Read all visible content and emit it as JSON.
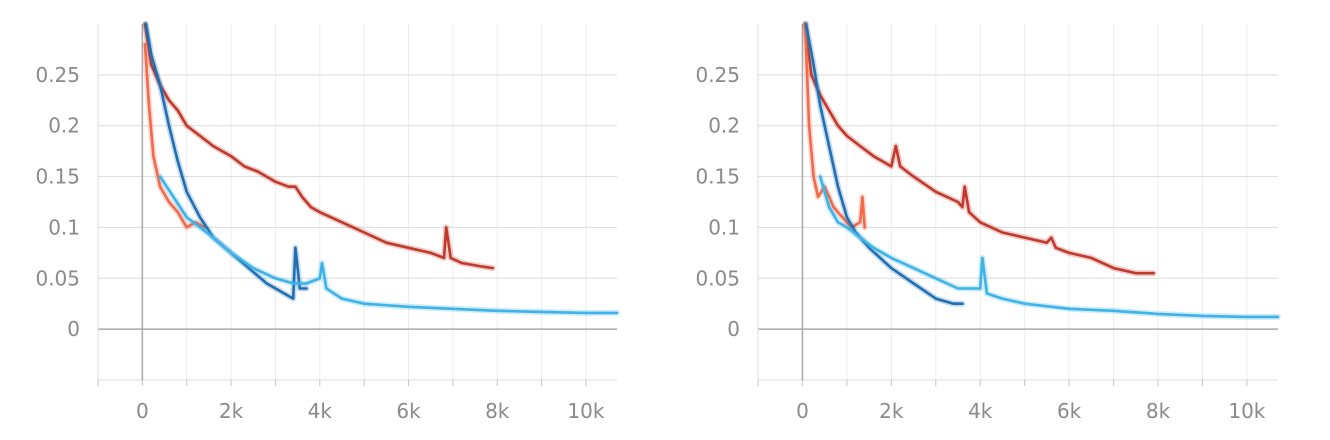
{
  "chart_data": [
    {
      "type": "line",
      "title": "",
      "xlabel": "",
      "ylabel": "",
      "xlim": [
        -1000,
        10700
      ],
      "ylim": [
        -0.05,
        0.3
      ],
      "x_ticks": [
        0,
        2000,
        4000,
        6000,
        8000,
        10000
      ],
      "x_tick_labels": [
        "0",
        "2k",
        "4k",
        "6k",
        "8k",
        "10k"
      ],
      "y_ticks": [
        0,
        0.05,
        0.1,
        0.15,
        0.2,
        0.25
      ],
      "y_tick_labels": [
        "0",
        "0.05",
        "0.1",
        "0.15",
        "0.2",
        "0.25"
      ],
      "grid": true,
      "legend": "none",
      "series": [
        {
          "color": "#c0392b",
          "points": [
            [
              60,
              0.3
            ],
            [
              200,
              0.26
            ],
            [
              400,
              0.24
            ],
            [
              600,
              0.225
            ],
            [
              800,
              0.215
            ],
            [
              1000,
              0.2
            ],
            [
              1300,
              0.19
            ],
            [
              1600,
              0.18
            ],
            [
              2000,
              0.17
            ],
            [
              2300,
              0.16
            ],
            [
              2600,
              0.155
            ],
            [
              3000,
              0.145
            ],
            [
              3300,
              0.14
            ],
            [
              3450,
              0.14
            ],
            [
              3600,
              0.13
            ],
            [
              3800,
              0.12
            ],
            [
              4000,
              0.115
            ],
            [
              4500,
              0.105
            ],
            [
              5000,
              0.095
            ],
            [
              5500,
              0.085
            ],
            [
              6000,
              0.08
            ],
            [
              6500,
              0.075
            ],
            [
              6800,
              0.07
            ],
            [
              6850,
              0.1
            ],
            [
              6950,
              0.07
            ],
            [
              7200,
              0.065
            ],
            [
              7600,
              0.062
            ],
            [
              7900,
              0.06
            ]
          ]
        },
        {
          "color": "#f26a4b",
          "points": [
            [
              60,
              0.28
            ],
            [
              150,
              0.22
            ],
            [
              250,
              0.17
            ],
            [
              400,
              0.14
            ],
            [
              600,
              0.125
            ],
            [
              800,
              0.115
            ],
            [
              1000,
              0.1
            ],
            [
              1200,
              0.105
            ],
            [
              1400,
              0.1
            ]
          ]
        },
        {
          "color": "#1f6fb2",
          "points": [
            [
              80,
              0.3
            ],
            [
              200,
              0.27
            ],
            [
              400,
              0.24
            ],
            [
              600,
              0.2
            ],
            [
              800,
              0.165
            ],
            [
              1000,
              0.135
            ],
            [
              1300,
              0.11
            ],
            [
              1600,
              0.09
            ],
            [
              2000,
              0.075
            ],
            [
              2400,
              0.06
            ],
            [
              2800,
              0.045
            ],
            [
              3200,
              0.035
            ],
            [
              3400,
              0.03
            ],
            [
              3450,
              0.08
            ],
            [
              3550,
              0.04
            ],
            [
              3700,
              0.04
            ]
          ]
        },
        {
          "color": "#3db3e8",
          "points": [
            [
              400,
              0.15
            ],
            [
              700,
              0.13
            ],
            [
              1000,
              0.11
            ],
            [
              1300,
              0.1
            ],
            [
              1600,
              0.09
            ],
            [
              2000,
              0.075
            ],
            [
              2500,
              0.06
            ],
            [
              3000,
              0.05
            ],
            [
              3400,
              0.045
            ],
            [
              3700,
              0.045
            ],
            [
              4000,
              0.05
            ],
            [
              4050,
              0.065
            ],
            [
              4150,
              0.04
            ],
            [
              4500,
              0.03
            ],
            [
              5000,
              0.025
            ],
            [
              6000,
              0.022
            ],
            [
              7000,
              0.02
            ],
            [
              8000,
              0.018
            ],
            [
              9000,
              0.017
            ],
            [
              10000,
              0.016
            ],
            [
              10700,
              0.016
            ]
          ]
        }
      ]
    },
    {
      "type": "line",
      "title": "",
      "xlabel": "",
      "ylabel": "",
      "xlim": [
        -1000,
        10700
      ],
      "ylim": [
        -0.05,
        0.3
      ],
      "x_ticks": [
        0,
        2000,
        4000,
        6000,
        8000,
        10000
      ],
      "x_tick_labels": [
        "0",
        "2k",
        "4k",
        "6k",
        "8k",
        "10k"
      ],
      "y_ticks": [
        0,
        0.05,
        0.1,
        0.15,
        0.2,
        0.25
      ],
      "y_tick_labels": [
        "0",
        "0.05",
        "0.1",
        "0.15",
        "0.2",
        "0.25"
      ],
      "grid": true,
      "legend": "none",
      "series": [
        {
          "color": "#c0392b",
          "points": [
            [
              60,
              0.3
            ],
            [
              200,
              0.25
            ],
            [
              400,
              0.23
            ],
            [
              600,
              0.215
            ],
            [
              800,
              0.2
            ],
            [
              1000,
              0.19
            ],
            [
              1300,
              0.18
            ],
            [
              1600,
              0.17
            ],
            [
              1800,
              0.165
            ],
            [
              2000,
              0.16
            ],
            [
              2100,
              0.18
            ],
            [
              2200,
              0.16
            ],
            [
              2500,
              0.15
            ],
            [
              3000,
              0.135
            ],
            [
              3500,
              0.125
            ],
            [
              3600,
              0.12
            ],
            [
              3650,
              0.14
            ],
            [
              3750,
              0.115
            ],
            [
              4000,
              0.105
            ],
            [
              4500,
              0.095
            ],
            [
              5000,
              0.09
            ],
            [
              5500,
              0.085
            ],
            [
              5600,
              0.09
            ],
            [
              5700,
              0.08
            ],
            [
              6000,
              0.075
            ],
            [
              6500,
              0.07
            ],
            [
              7000,
              0.06
            ],
            [
              7500,
              0.055
            ],
            [
              7900,
              0.055
            ]
          ]
        },
        {
          "color": "#f26a4b",
          "points": [
            [
              60,
              0.3
            ],
            [
              150,
              0.2
            ],
            [
              250,
              0.15
            ],
            [
              350,
              0.13
            ],
            [
              500,
              0.14
            ],
            [
              700,
              0.12
            ],
            [
              900,
              0.11
            ],
            [
              1100,
              0.1
            ],
            [
              1300,
              0.105
            ],
            [
              1350,
              0.13
            ],
            [
              1400,
              0.1
            ]
          ]
        },
        {
          "color": "#1f6fb2",
          "points": [
            [
              80,
              0.3
            ],
            [
              250,
              0.26
            ],
            [
              400,
              0.22
            ],
            [
              600,
              0.18
            ],
            [
              800,
              0.14
            ],
            [
              1000,
              0.11
            ],
            [
              1200,
              0.095
            ],
            [
              1500,
              0.08
            ],
            [
              2000,
              0.06
            ],
            [
              2500,
              0.045
            ],
            [
              3000,
              0.03
            ],
            [
              3400,
              0.025
            ],
            [
              3600,
              0.025
            ]
          ]
        },
        {
          "color": "#3db3e8",
          "points": [
            [
              400,
              0.15
            ],
            [
              600,
              0.12
            ],
            [
              800,
              0.105
            ],
            [
              1000,
              0.1
            ],
            [
              1300,
              0.09
            ],
            [
              1600,
              0.08
            ],
            [
              2000,
              0.07
            ],
            [
              2500,
              0.06
            ],
            [
              3000,
              0.05
            ],
            [
              3500,
              0.04
            ],
            [
              4000,
              0.04
            ],
            [
              4050,
              0.07
            ],
            [
              4150,
              0.035
            ],
            [
              4500,
              0.03
            ],
            [
              5000,
              0.025
            ],
            [
              6000,
              0.02
            ],
            [
              7000,
              0.018
            ],
            [
              8000,
              0.015
            ],
            [
              9000,
              0.013
            ],
            [
              10000,
              0.012
            ],
            [
              10700,
              0.012
            ]
          ]
        }
      ]
    }
  ]
}
